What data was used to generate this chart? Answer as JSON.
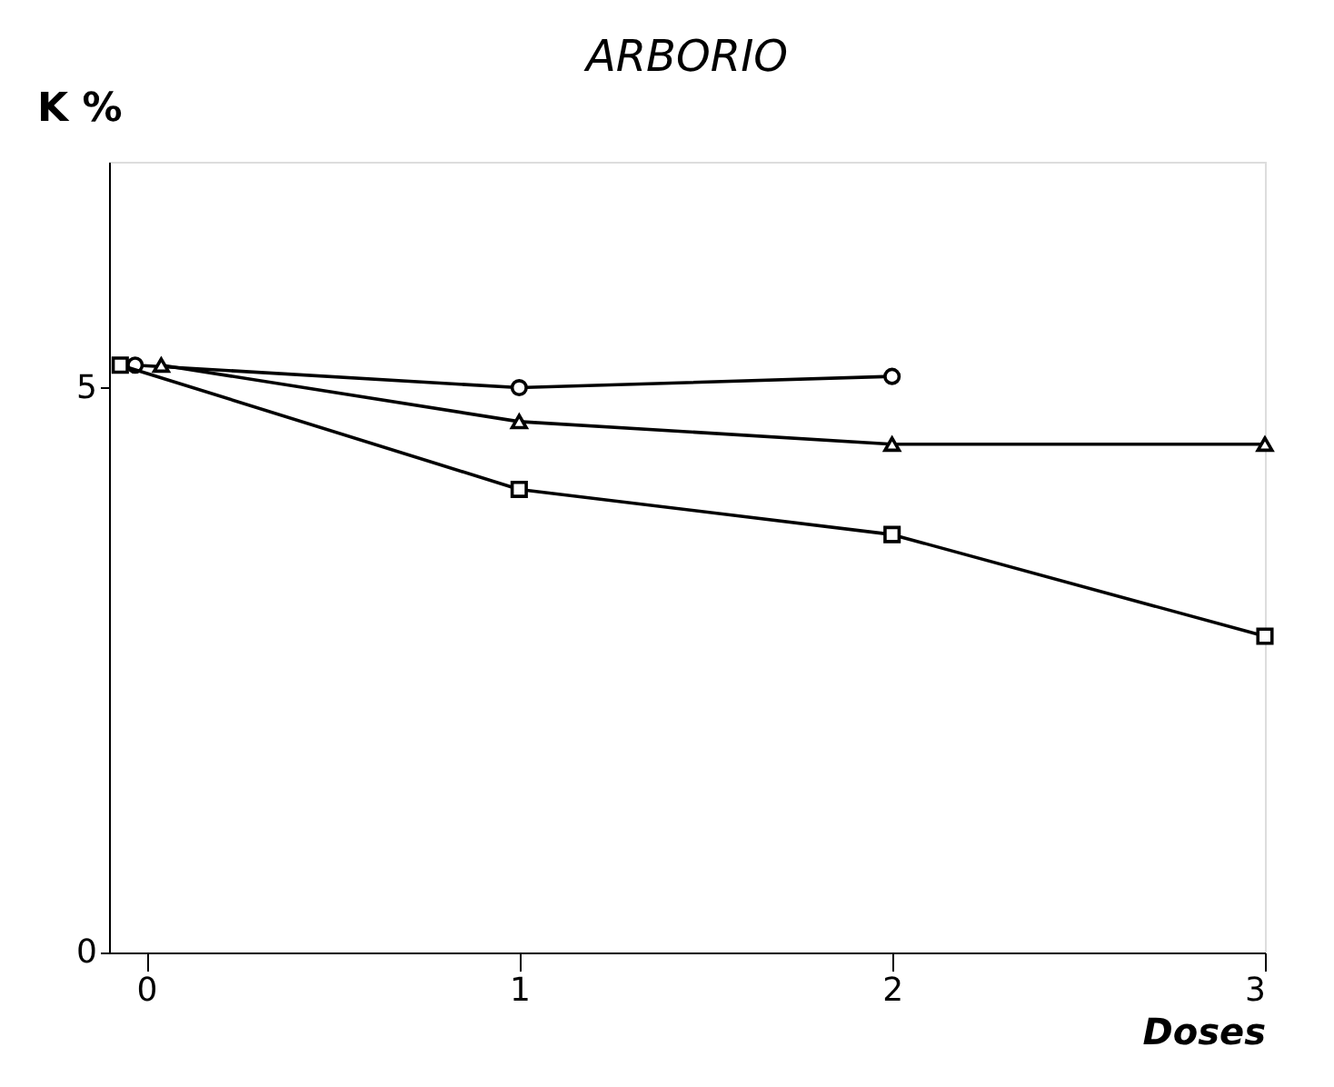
{
  "chart_data": {
    "type": "line",
    "title": "ARBORIO",
    "xlabel": "Doses",
    "ylabel": "K %",
    "series": [
      {
        "color": "#000000",
        "marker": "circle",
        "x": [
          -0.03,
          1,
          2
        ],
        "values": [
          5.2,
          5.0,
          5.1
        ]
      },
      {
        "color": "#000000",
        "marker": "triangle",
        "x": [
          0.04,
          1,
          2,
          3
        ],
        "values": [
          5.2,
          4.7,
          4.5,
          4.5
        ]
      },
      {
        "color": "#000000",
        "marker": "square",
        "x": [
          -0.07,
          1,
          2,
          3
        ],
        "values": [
          5.2,
          4.1,
          3.7,
          2.8
        ]
      }
    ],
    "xlim": [
      -0.1,
      3
    ],
    "ylim": [
      0,
      7
    ],
    "xticks": [
      0,
      1,
      2,
      3
    ],
    "yticks": [
      0,
      5
    ],
    "grid": false,
    "line_style": "solid"
  }
}
